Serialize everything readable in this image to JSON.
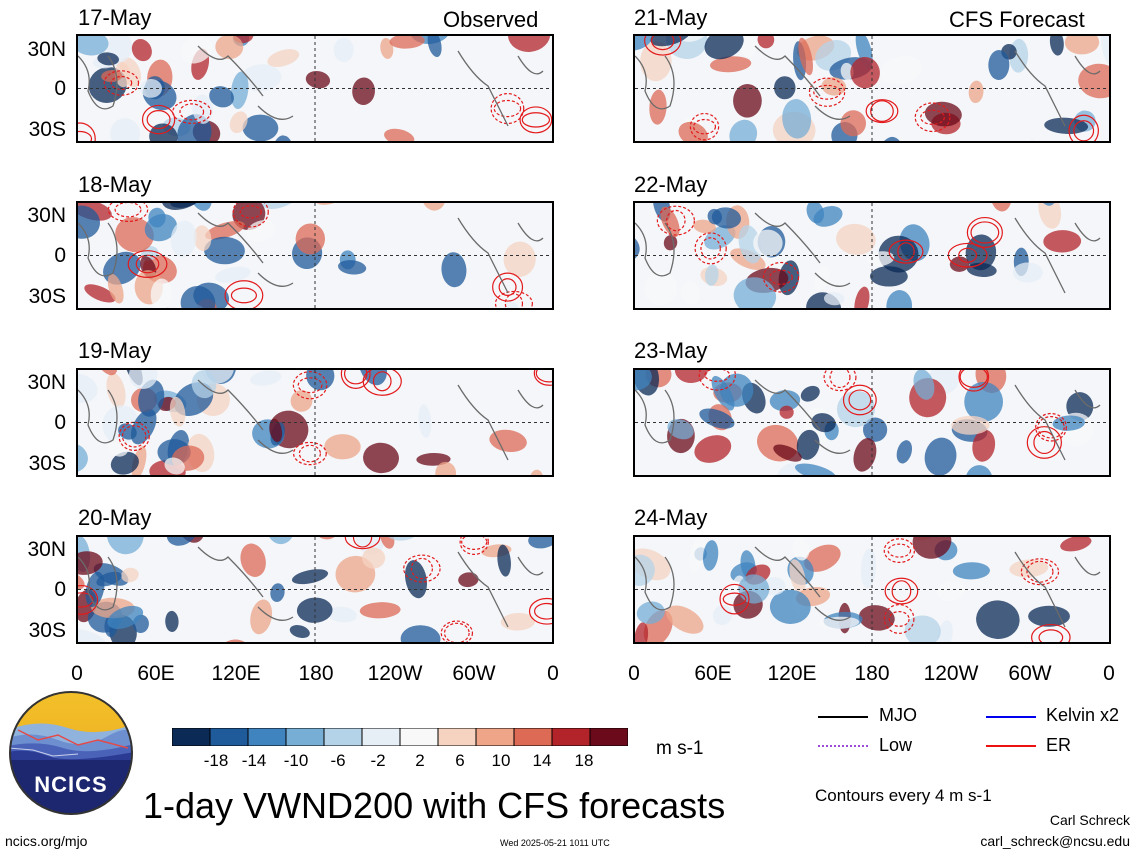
{
  "header": {
    "observed_label": "Observed",
    "forecast_label": "CFS Forecast"
  },
  "panels": {
    "left": [
      {
        "date": "17-May"
      },
      {
        "date": "18-May"
      },
      {
        "date": "19-May"
      },
      {
        "date": "20-May"
      }
    ],
    "right": [
      {
        "date": "21-May"
      },
      {
        "date": "22-May"
      },
      {
        "date": "23-May"
      },
      {
        "date": "24-May"
      }
    ]
  },
  "lat_labels": [
    "30N",
    "0",
    "30S"
  ],
  "lon_labels": [
    "0",
    "60E",
    "120E",
    "180",
    "120W",
    "60W",
    "0"
  ],
  "colorbar": {
    "ticks": [
      "-18",
      "-14",
      "-10",
      "-6",
      "-2",
      "2",
      "6",
      "10",
      "14",
      "18"
    ],
    "units": "m s-1",
    "colors": [
      "#0b2a55",
      "#1f5a9a",
      "#3f84bf",
      "#77aed5",
      "#b5d3e8",
      "#e6eef6",
      "#f8f8f8",
      "#f6d3c1",
      "#eea588",
      "#dc6a55",
      "#b3242a",
      "#6b0a1a"
    ]
  },
  "legend": {
    "items": [
      {
        "label": "MJO",
        "color": "#000000"
      },
      {
        "label": "Kelvin x2",
        "color": "#0000ee"
      },
      {
        "label": "Low",
        "color": "#9b4fd8"
      },
      {
        "label": "ER",
        "color": "#ee1111"
      }
    ],
    "contours_note": "Contours every 4 m s-1"
  },
  "footer": {
    "title": "1-day VWND200 with CFS forecasts",
    "logo_text": "NCICS",
    "left_url": "ncics.org/mjo",
    "timestamp": "Wed 2025-05-21 1011 UTC",
    "author": "Carl Schreck",
    "email": "carl_schreck@ncsu.edu"
  }
}
